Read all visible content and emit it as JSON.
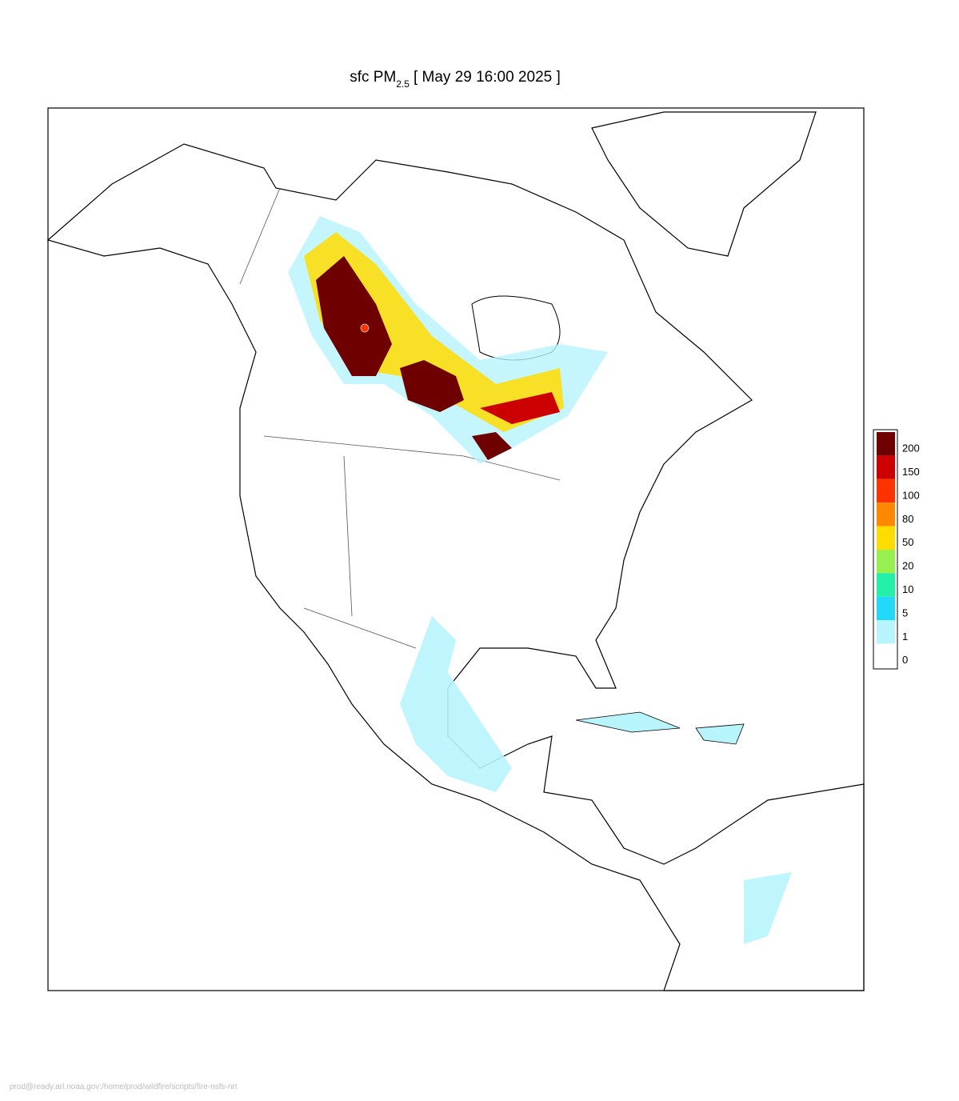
{
  "title": {
    "prefix": "sfc PM",
    "subscript": "2.5",
    "suffix": "[ May 29 16:00 2025 ]"
  },
  "legend": {
    "levels": [
      200,
      150,
      100,
      80,
      50,
      20,
      10,
      5,
      1,
      0
    ],
    "colors": [
      "#6e0000",
      "#cc0000",
      "#ff3200",
      "#ff8800",
      "#ffdc00",
      "#96f050",
      "#22f0a8",
      "#22d8f8",
      "#b8f4fc",
      "#ffffff"
    ]
  },
  "footer": "prod@ready.arl.noaa.gov:/home/prod/wildfire/scripts/fire-nsfs-nrt"
}
